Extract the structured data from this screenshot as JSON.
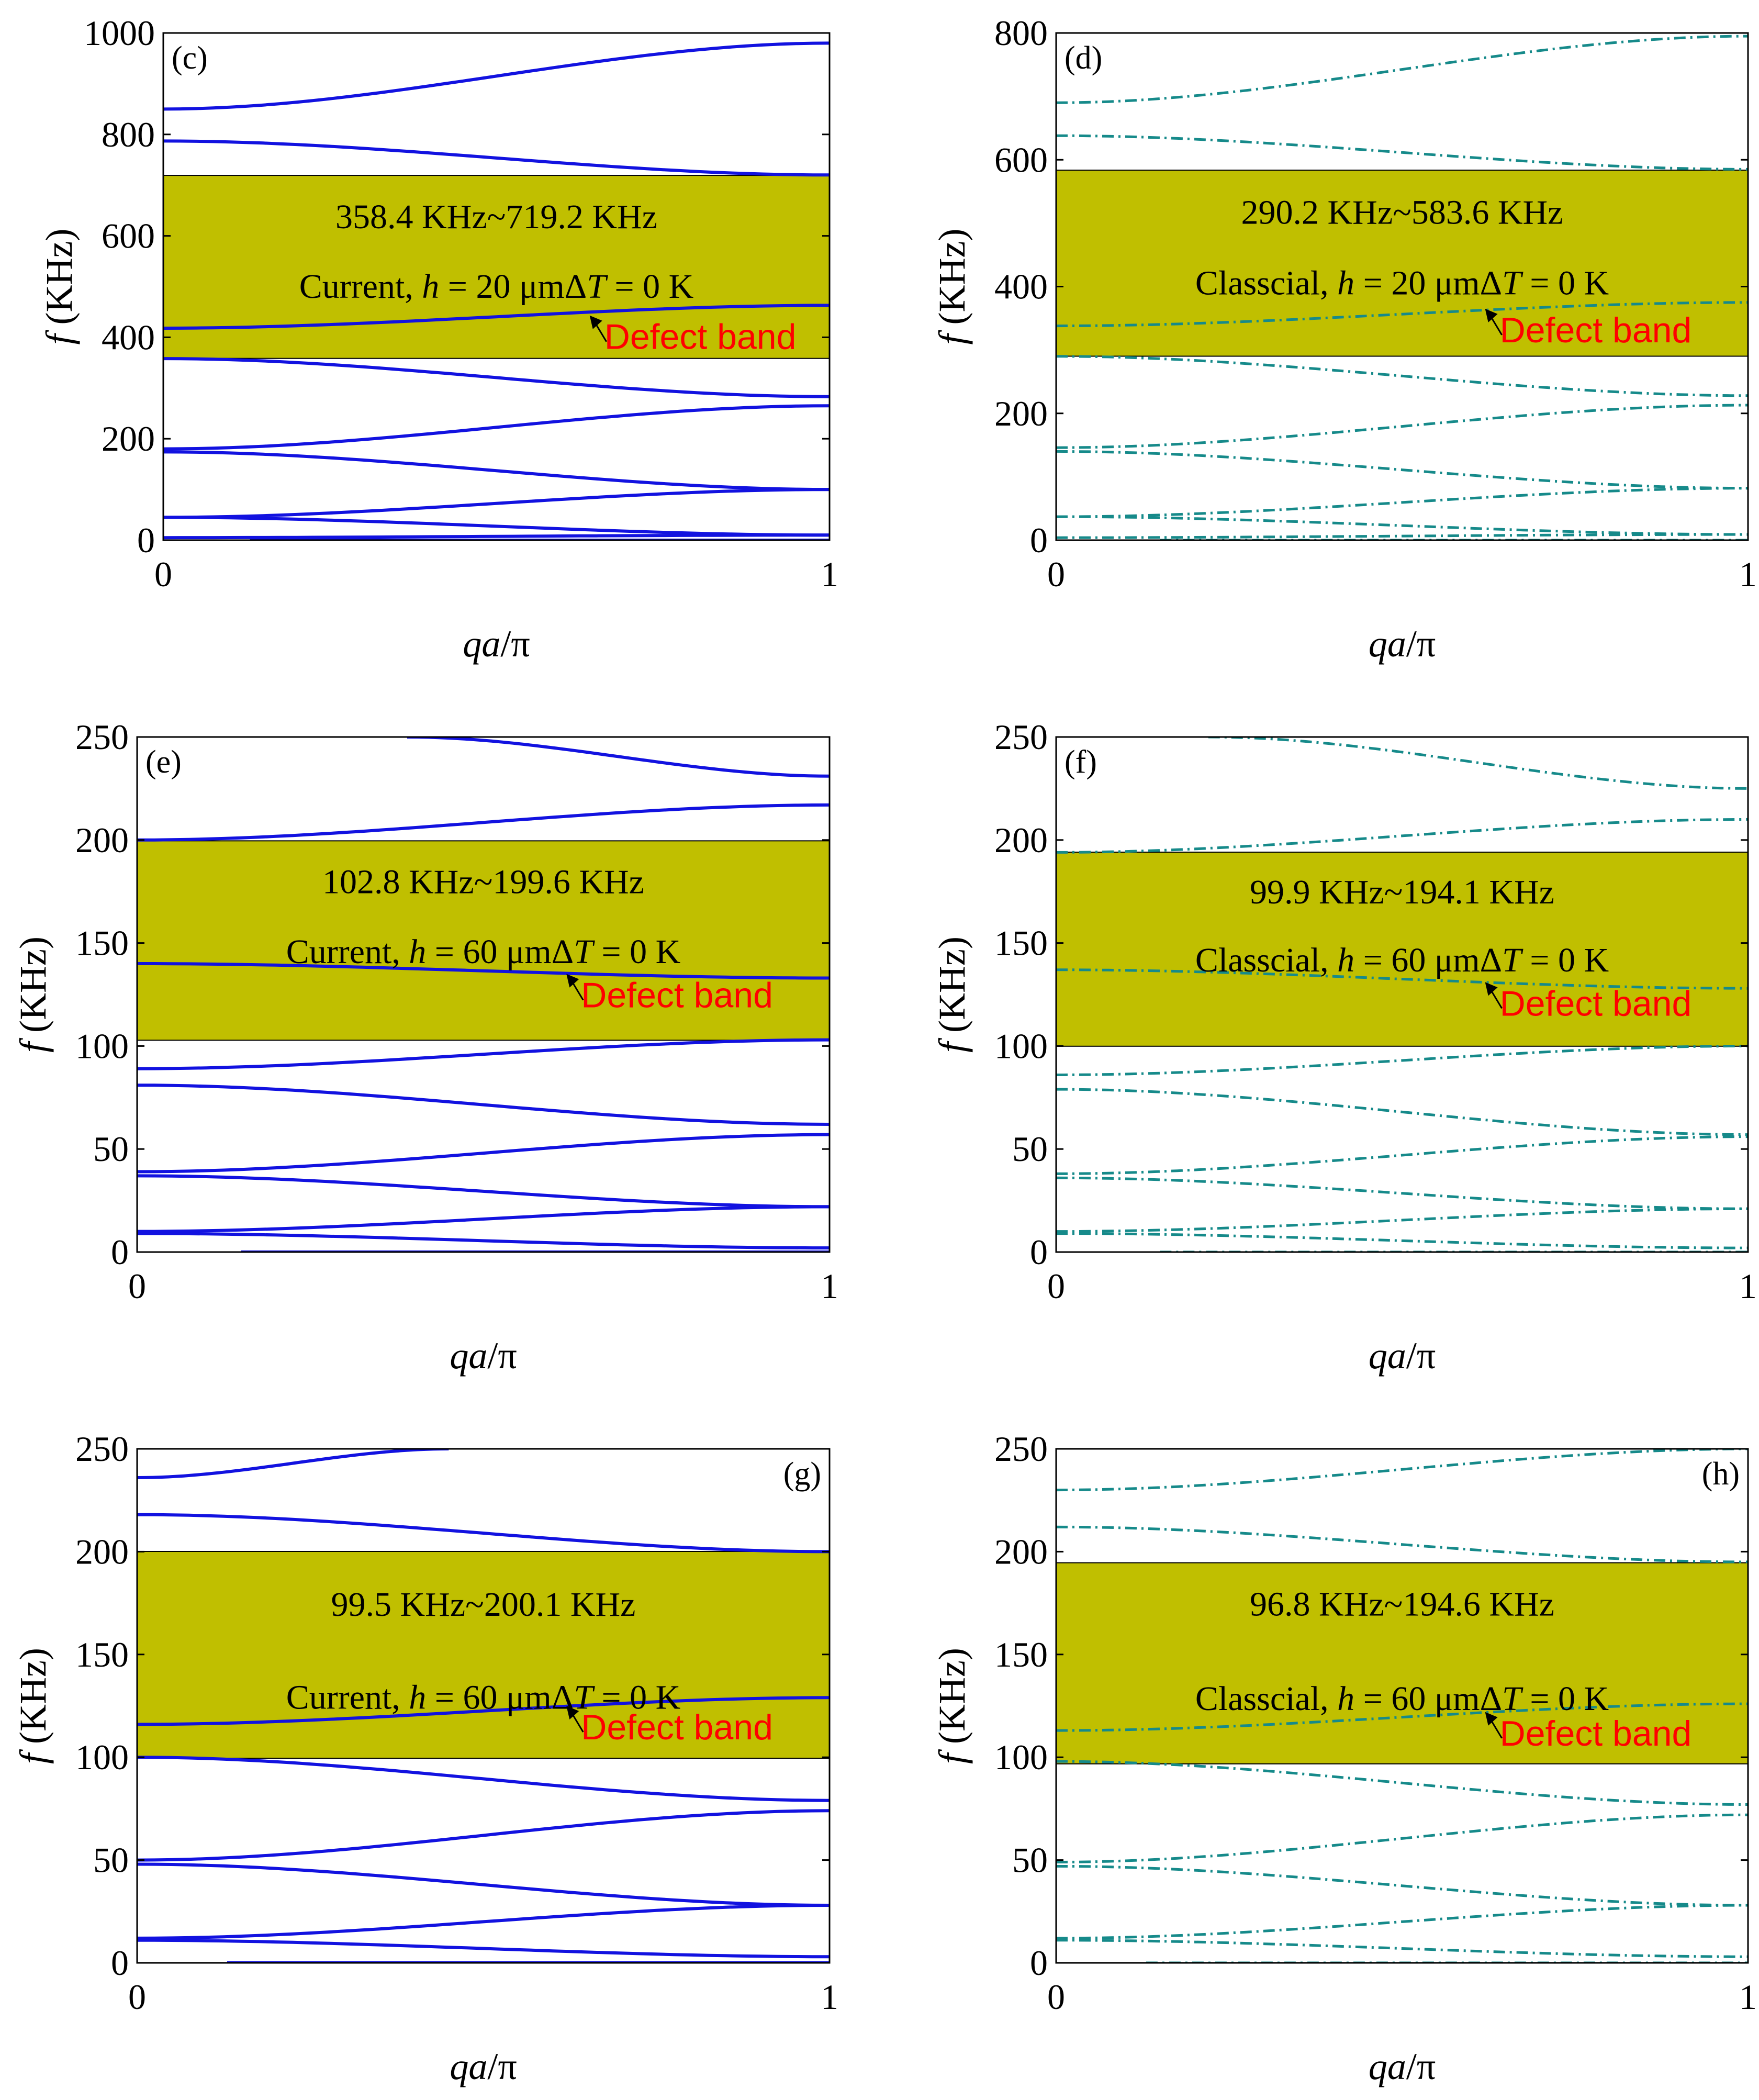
{
  "colors": {
    "current": "#1212e0",
    "classical": "#168a8a",
    "gap": "#c0bf00",
    "defect_text": "#ff0000",
    "arrow": "#000000"
  },
  "chart_data": [
    {
      "type": "line",
      "panel": "(c)",
      "ylim": [
        0,
        1000
      ],
      "yticks": [
        "0",
        "200",
        "400",
        "600",
        "800",
        "1000"
      ],
      "xlim": [
        0,
        1
      ],
      "xticks": [
        "0",
        "1"
      ],
      "ylabel": {
        "italic": "f",
        "rest": " (KHz)"
      },
      "xlabel": {
        "italic": "qa",
        "rest": "/π"
      },
      "style": "solid",
      "gap": [
        358.4,
        719.2
      ],
      "gap_label": "358.4 KHz~719.2 KHz",
      "info": {
        "model": "Current",
        "h": "20 μm",
        "dT": "0 K"
      },
      "defect_label": "Defect band",
      "defect_arrow": {
        "x": 0.64,
        "y": 443
      },
      "series": [
        {
          "x": [
            0.13,
            1
          ],
          "y": [
            0,
            0
          ]
        },
        {
          "x": [
            0,
            1
          ],
          "y": [
            5,
            10
          ]
        },
        {
          "x": [
            0,
            1
          ],
          "y": [
            45,
            10
          ]
        },
        {
          "x": [
            0,
            1
          ],
          "y": [
            45,
            100
          ]
        },
        {
          "x": [
            0,
            1
          ],
          "y": [
            174,
            100
          ]
        },
        {
          "x": [
            0,
            1
          ],
          "y": [
            180,
            265
          ]
        },
        {
          "x": [
            0,
            1
          ],
          "y": [
            358,
            283
          ]
        },
        {
          "x": [
            0,
            1
          ],
          "y": [
            418,
            463
          ]
        },
        {
          "x": [
            0,
            1
          ],
          "y": [
            787,
            720
          ]
        },
        {
          "x": [
            0,
            1
          ],
          "y": [
            850,
            980
          ]
        }
      ]
    },
    {
      "type": "line",
      "panel": "(d)",
      "ylim": [
        0,
        800
      ],
      "yticks": [
        "0",
        "200",
        "400",
        "600",
        "800"
      ],
      "xlim": [
        0,
        1
      ],
      "xticks": [
        "0",
        "1"
      ],
      "ylabel": {
        "italic": "f",
        "rest": " (KHz)"
      },
      "xlabel": {
        "italic": "qa",
        "rest": "/π"
      },
      "style": "dashdot",
      "gap": [
        290.2,
        583.6
      ],
      "gap_label": "290.2 KHz~583.6 KHz",
      "info": {
        "model": "Classcial",
        "h": "20 μm",
        "dT": "0 K"
      },
      "defect_label": "Defect band",
      "defect_arrow": {
        "x": 0.62,
        "y": 365
      },
      "series": [
        {
          "x": [
            0.15,
            1
          ],
          "y": [
            0,
            0
          ]
        },
        {
          "x": [
            0,
            1
          ],
          "y": [
            4,
            9
          ]
        },
        {
          "x": [
            0,
            1
          ],
          "y": [
            37,
            9
          ]
        },
        {
          "x": [
            0,
            1
          ],
          "y": [
            37,
            82
          ]
        },
        {
          "x": [
            0,
            1
          ],
          "y": [
            140,
            82
          ]
        },
        {
          "x": [
            0,
            1
          ],
          "y": [
            146,
            213
          ]
        },
        {
          "x": [
            0,
            1
          ],
          "y": [
            290,
            228
          ]
        },
        {
          "x": [
            0,
            1
          ],
          "y": [
            338,
            375
          ]
        },
        {
          "x": [
            0,
            1
          ],
          "y": [
            638,
            585
          ]
        },
        {
          "x": [
            0,
            1
          ],
          "y": [
            690,
            795
          ]
        }
      ]
    },
    {
      "type": "line",
      "panel": "(e)",
      "ylim": [
        0,
        250
      ],
      "yticks": [
        "0",
        "50",
        "100",
        "150",
        "200",
        "250"
      ],
      "xlim": [
        0,
        1
      ],
      "xticks": [
        "0",
        "1"
      ],
      "ylabel": {
        "italic": "f",
        "rest": " (KHz)"
      },
      "xlabel": {
        "italic": "qa",
        "rest": "/π"
      },
      "style": "solid",
      "gap": [
        102.8,
        199.6
      ],
      "gap_label": "102.8 KHz~199.6 KHz",
      "info": {
        "model": "Current",
        "h": "60 μm",
        "dT": "0 K"
      },
      "defect_label": "Defect band",
      "defect_arrow": {
        "x": 0.62,
        "y": 135
      },
      "series": [
        {
          "x": [
            0.15,
            1
          ],
          "y": [
            0,
            0
          ]
        },
        {
          "x": [
            0,
            1
          ],
          "y": [
            9,
            2
          ]
        },
        {
          "x": [
            0,
            1
          ],
          "y": [
            10,
            22
          ]
        },
        {
          "x": [
            0,
            1
          ],
          "y": [
            37,
            22
          ]
        },
        {
          "x": [
            0,
            1
          ],
          "y": [
            39,
            57
          ]
        },
        {
          "x": [
            0,
            1
          ],
          "y": [
            81,
            62
          ]
        },
        {
          "x": [
            0,
            1
          ],
          "y": [
            89,
            103
          ]
        },
        {
          "x": [
            0,
            1
          ],
          "y": [
            140,
            133
          ]
        },
        {
          "x": [
            0,
            1
          ],
          "y": [
            200,
            217
          ]
        },
        {
          "x": [
            0.39,
            1
          ],
          "y": [
            250,
            231
          ]
        }
      ]
    },
    {
      "type": "line",
      "panel": "(f)",
      "ylim": [
        0,
        250
      ],
      "yticks": [
        "0",
        "50",
        "100",
        "150",
        "200",
        "250"
      ],
      "xlim": [
        0,
        1
      ],
      "xticks": [
        "0",
        "1"
      ],
      "ylabel": {
        "italic": "f",
        "rest": " (KHz)"
      },
      "xlabel": {
        "italic": "qa",
        "rest": "/π"
      },
      "style": "dashdot",
      "gap": [
        99.9,
        194.1
      ],
      "gap_label": "99.9 KHz~194.1 KHz",
      "info": {
        "model": "Classcial",
        "h": "60 μm",
        "dT": "0 K"
      },
      "defect_label": "Defect band",
      "defect_arrow": {
        "x": 0.62,
        "y": 131
      },
      "series": [
        {
          "x": [
            0.15,
            1
          ],
          "y": [
            0,
            0
          ]
        },
        {
          "x": [
            0,
            1
          ],
          "y": [
            9,
            2
          ]
        },
        {
          "x": [
            0,
            1
          ],
          "y": [
            10,
            21
          ]
        },
        {
          "x": [
            0,
            1
          ],
          "y": [
            36,
            21
          ]
        },
        {
          "x": [
            0,
            1
          ],
          "y": [
            38,
            56
          ]
        },
        {
          "x": [
            0,
            1
          ],
          "y": [
            79,
            57
          ]
        },
        {
          "x": [
            0,
            1
          ],
          "y": [
            86,
            100
          ]
        },
        {
          "x": [
            0,
            1
          ],
          "y": [
            137,
            128
          ]
        },
        {
          "x": [
            0,
            1
          ],
          "y": [
            194,
            210
          ]
        },
        {
          "x": [
            0.22,
            1
          ],
          "y": [
            250,
            225
          ]
        }
      ]
    },
    {
      "type": "line",
      "panel": "(g)",
      "ylim": [
        0,
        250
      ],
      "yticks": [
        "0",
        "50",
        "100",
        "150",
        "200",
        "250"
      ],
      "xlim": [
        0,
        1
      ],
      "xticks": [
        "0",
        "1"
      ],
      "ylabel": {
        "italic": "f",
        "rest": " (KHz)"
      },
      "xlabel": {
        "italic": "qa",
        "rest": "/π"
      },
      "style": "solid",
      "gap": [
        99.5,
        200.1
      ],
      "gap_label": "99.5 KHz~200.1 KHz",
      "info": {
        "model": "Current",
        "h": "60 μm",
        "dT": "0 K"
      },
      "defect_label": "Defect band",
      "defect_arrow": {
        "x": 0.62,
        "y": 125
      },
      "series": [
        {
          "x": [
            0.13,
            1
          ],
          "y": [
            0,
            0
          ]
        },
        {
          "x": [
            0,
            1
          ],
          "y": [
            11,
            3
          ]
        },
        {
          "x": [
            0,
            1
          ],
          "y": [
            12,
            28
          ]
        },
        {
          "x": [
            0,
            1
          ],
          "y": [
            48,
            28
          ]
        },
        {
          "x": [
            0,
            1
          ],
          "y": [
            50,
            74
          ]
        },
        {
          "x": [
            0,
            1
          ],
          "y": [
            100,
            79
          ]
        },
        {
          "x": [
            0,
            1
          ],
          "y": [
            116,
            129
          ]
        },
        {
          "x": [
            0,
            1
          ],
          "y": [
            218,
            200
          ]
        },
        {
          "x": [
            0,
            0.45
          ],
          "y": [
            236,
            250
          ]
        }
      ]
    },
    {
      "type": "line",
      "panel": "(h)",
      "ylim": [
        0,
        250
      ],
      "yticks": [
        "0",
        "50",
        "100",
        "150",
        "200",
        "250"
      ],
      "xlim": [
        0,
        1
      ],
      "xticks": [
        "0",
        "1"
      ],
      "ylabel": {
        "italic": "f",
        "rest": " (KHz)"
      },
      "xlabel": {
        "italic": "qa",
        "rest": "/π"
      },
      "style": "dashdot",
      "gap": [
        96.8,
        194.6
      ],
      "gap_label": "96.8 KHz~194.6 KHz",
      "info": {
        "model": "Classcial",
        "h": "60 μm",
        "dT": "0 K"
      },
      "defect_label": "Defect band",
      "defect_arrow": {
        "x": 0.62,
        "y": 122
      },
      "series": [
        {
          "x": [
            0.13,
            1
          ],
          "y": [
            0,
            0
          ]
        },
        {
          "x": [
            0,
            1
          ],
          "y": [
            11,
            3
          ]
        },
        {
          "x": [
            0,
            1
          ],
          "y": [
            12,
            28
          ]
        },
        {
          "x": [
            0,
            1
          ],
          "y": [
            47,
            28
          ]
        },
        {
          "x": [
            0,
            1
          ],
          "y": [
            49,
            72
          ]
        },
        {
          "x": [
            0,
            1
          ],
          "y": [
            98,
            77
          ]
        },
        {
          "x": [
            0,
            1
          ],
          "y": [
            113,
            126
          ]
        },
        {
          "x": [
            0,
            1
          ],
          "y": [
            212,
            195
          ]
        },
        {
          "x": [
            0,
            1
          ],
          "y": [
            230,
            250
          ]
        }
      ]
    }
  ]
}
